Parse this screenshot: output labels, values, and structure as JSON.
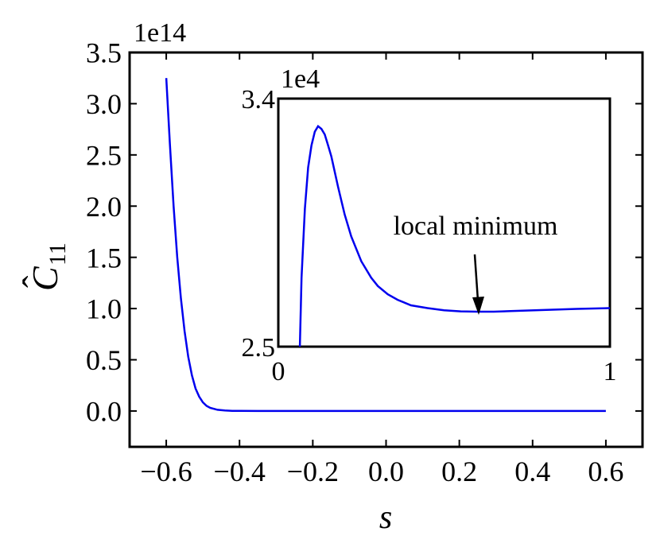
{
  "chart_data": [
    {
      "type": "line",
      "title": "",
      "xlabel": "s",
      "ylabel": "C11",
      "ylabel_parts": {
        "base": "C",
        "hat": "ˆ",
        "subscript": "11"
      },
      "y_multiplier": "1e14",
      "xlim": [
        -0.7,
        0.7
      ],
      "ylim": [
        -0.35,
        3.5
      ],
      "x_ticks": [
        -0.6,
        -0.4,
        -0.2,
        0.0,
        0.2,
        0.4,
        0.6
      ],
      "x_tick_labels": [
        "−0.6",
        "−0.4",
        "−0.2",
        "0.0",
        "0.2",
        "0.4",
        "0.6"
      ],
      "y_ticks": [
        0.0,
        0.5,
        1.0,
        1.5,
        2.0,
        2.5,
        3.0,
        3.5
      ],
      "y_tick_labels": [
        "0.0",
        "0.5",
        "1.0",
        "1.5",
        "2.0",
        "2.5",
        "3.0",
        "3.5"
      ],
      "grid": false,
      "line_color": "#0000ee",
      "series": [
        {
          "x": [
            -0.6,
            -0.59,
            -0.58,
            -0.57,
            -0.56,
            -0.55,
            -0.54,
            -0.53,
            -0.52,
            -0.51,
            -0.5,
            -0.49,
            -0.48,
            -0.46,
            -0.44,
            -0.42,
            -0.4,
            -0.35,
            -0.3,
            -0.2,
            0.0,
            0.2,
            0.4,
            0.6
          ],
          "values": [
            3.25,
            2.6,
            2.0,
            1.5,
            1.1,
            0.78,
            0.53,
            0.35,
            0.22,
            0.14,
            0.085,
            0.05,
            0.03,
            0.012,
            0.005,
            0.002,
            0.001,
            0.0003,
            0.0001,
            0.0,
            0.0,
            0.0,
            0.0,
            0.0
          ]
        }
      ]
    },
    {
      "type": "line",
      "title": "",
      "xlabel": "",
      "ylabel": "",
      "y_multiplier": "1e4",
      "xlim": [
        0,
        1
      ],
      "ylim": [
        2.5,
        3.4
      ],
      "x_ticks": [
        0,
        1
      ],
      "x_tick_labels": [
        "0",
        "1"
      ],
      "y_ticks": [
        2.5,
        3.4
      ],
      "y_tick_labels": [
        "2.5",
        "3.4"
      ],
      "grid": false,
      "line_color": "#0000ee",
      "annotation": {
        "text": "local minimum",
        "x": 0.6,
        "y": 2.628
      },
      "series": [
        {
          "x": [
            0.065,
            0.07,
            0.08,
            0.09,
            0.1,
            0.11,
            0.12,
            0.13,
            0.14,
            0.15,
            0.16,
            0.18,
            0.2,
            0.22,
            0.25,
            0.28,
            0.3,
            0.33,
            0.36,
            0.4,
            0.45,
            0.5,
            0.55,
            0.6,
            0.65,
            0.7,
            0.8,
            0.9,
            1.0
          ],
          "values": [
            2.5,
            2.75,
            3.0,
            3.15,
            3.23,
            3.28,
            3.3,
            3.29,
            3.27,
            3.23,
            3.19,
            3.08,
            2.98,
            2.9,
            2.81,
            2.75,
            2.72,
            2.69,
            2.67,
            2.65,
            2.64,
            2.632,
            2.628,
            2.627,
            2.627,
            2.629,
            2.633,
            2.637,
            2.64
          ]
        }
      ]
    }
  ]
}
